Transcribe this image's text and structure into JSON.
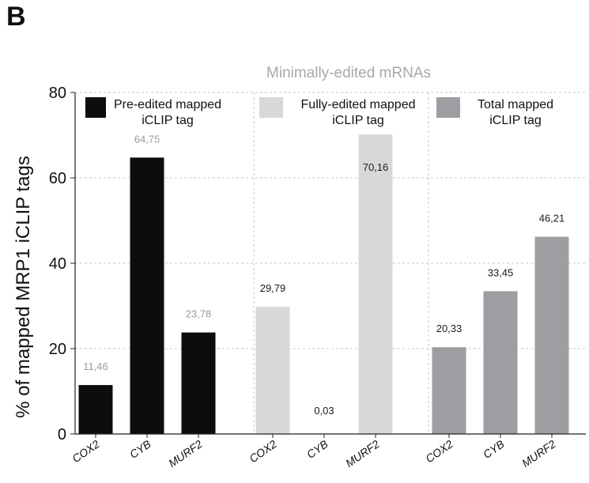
{
  "panel_label": "B",
  "chart_data": {
    "type": "bar",
    "title": "Minimally-edited mRNAs",
    "ylabel": "% of mapped MRP1 iCLIP tags",
    "xlabel": "",
    "ylim": [
      0,
      80
    ],
    "yticks": [
      0,
      20,
      40,
      60,
      80
    ],
    "grid": "dashed horizontal",
    "legend_placement": "top, one label per group",
    "groups": [
      {
        "name": "Pre-edited mapped iCLIP tag",
        "legend_line1": "Pre-edited mapped",
        "legend_line2": "iCLIP tag",
        "color": "#0d0d0d",
        "label_color": "#9a9a9a",
        "categories": [
          "COX2",
          "CYB",
          "MURF2"
        ],
        "values": [
          11.46,
          64.75,
          23.78
        ],
        "value_labels": [
          "11,46",
          "64,75",
          "23,78"
        ]
      },
      {
        "name": "Fully-edited mapped iCLIP tag",
        "legend_line1": "Fully-edited mapped",
        "legend_line2": "iCLIP tag",
        "color": "#d8d8d8",
        "label_color": "#1a1a1a",
        "categories": [
          "COX2",
          "CYB",
          "MURF2"
        ],
        "values": [
          29.79,
          0.03,
          70.16
        ],
        "value_labels": [
          "29,79",
          "0,03",
          "70,16"
        ]
      },
      {
        "name": "Total mapped iCLIP tag",
        "legend_line1": "Total mapped",
        "legend_line2": "iCLIP tag",
        "color": "#9d9ea2",
        "label_color": "#1a1a1a",
        "categories": [
          "COX2",
          "CYB",
          "MURF2"
        ],
        "values": [
          20.33,
          33.45,
          46.21
        ],
        "value_labels": [
          "20,33",
          "33,45",
          "46,21"
        ]
      }
    ]
  }
}
